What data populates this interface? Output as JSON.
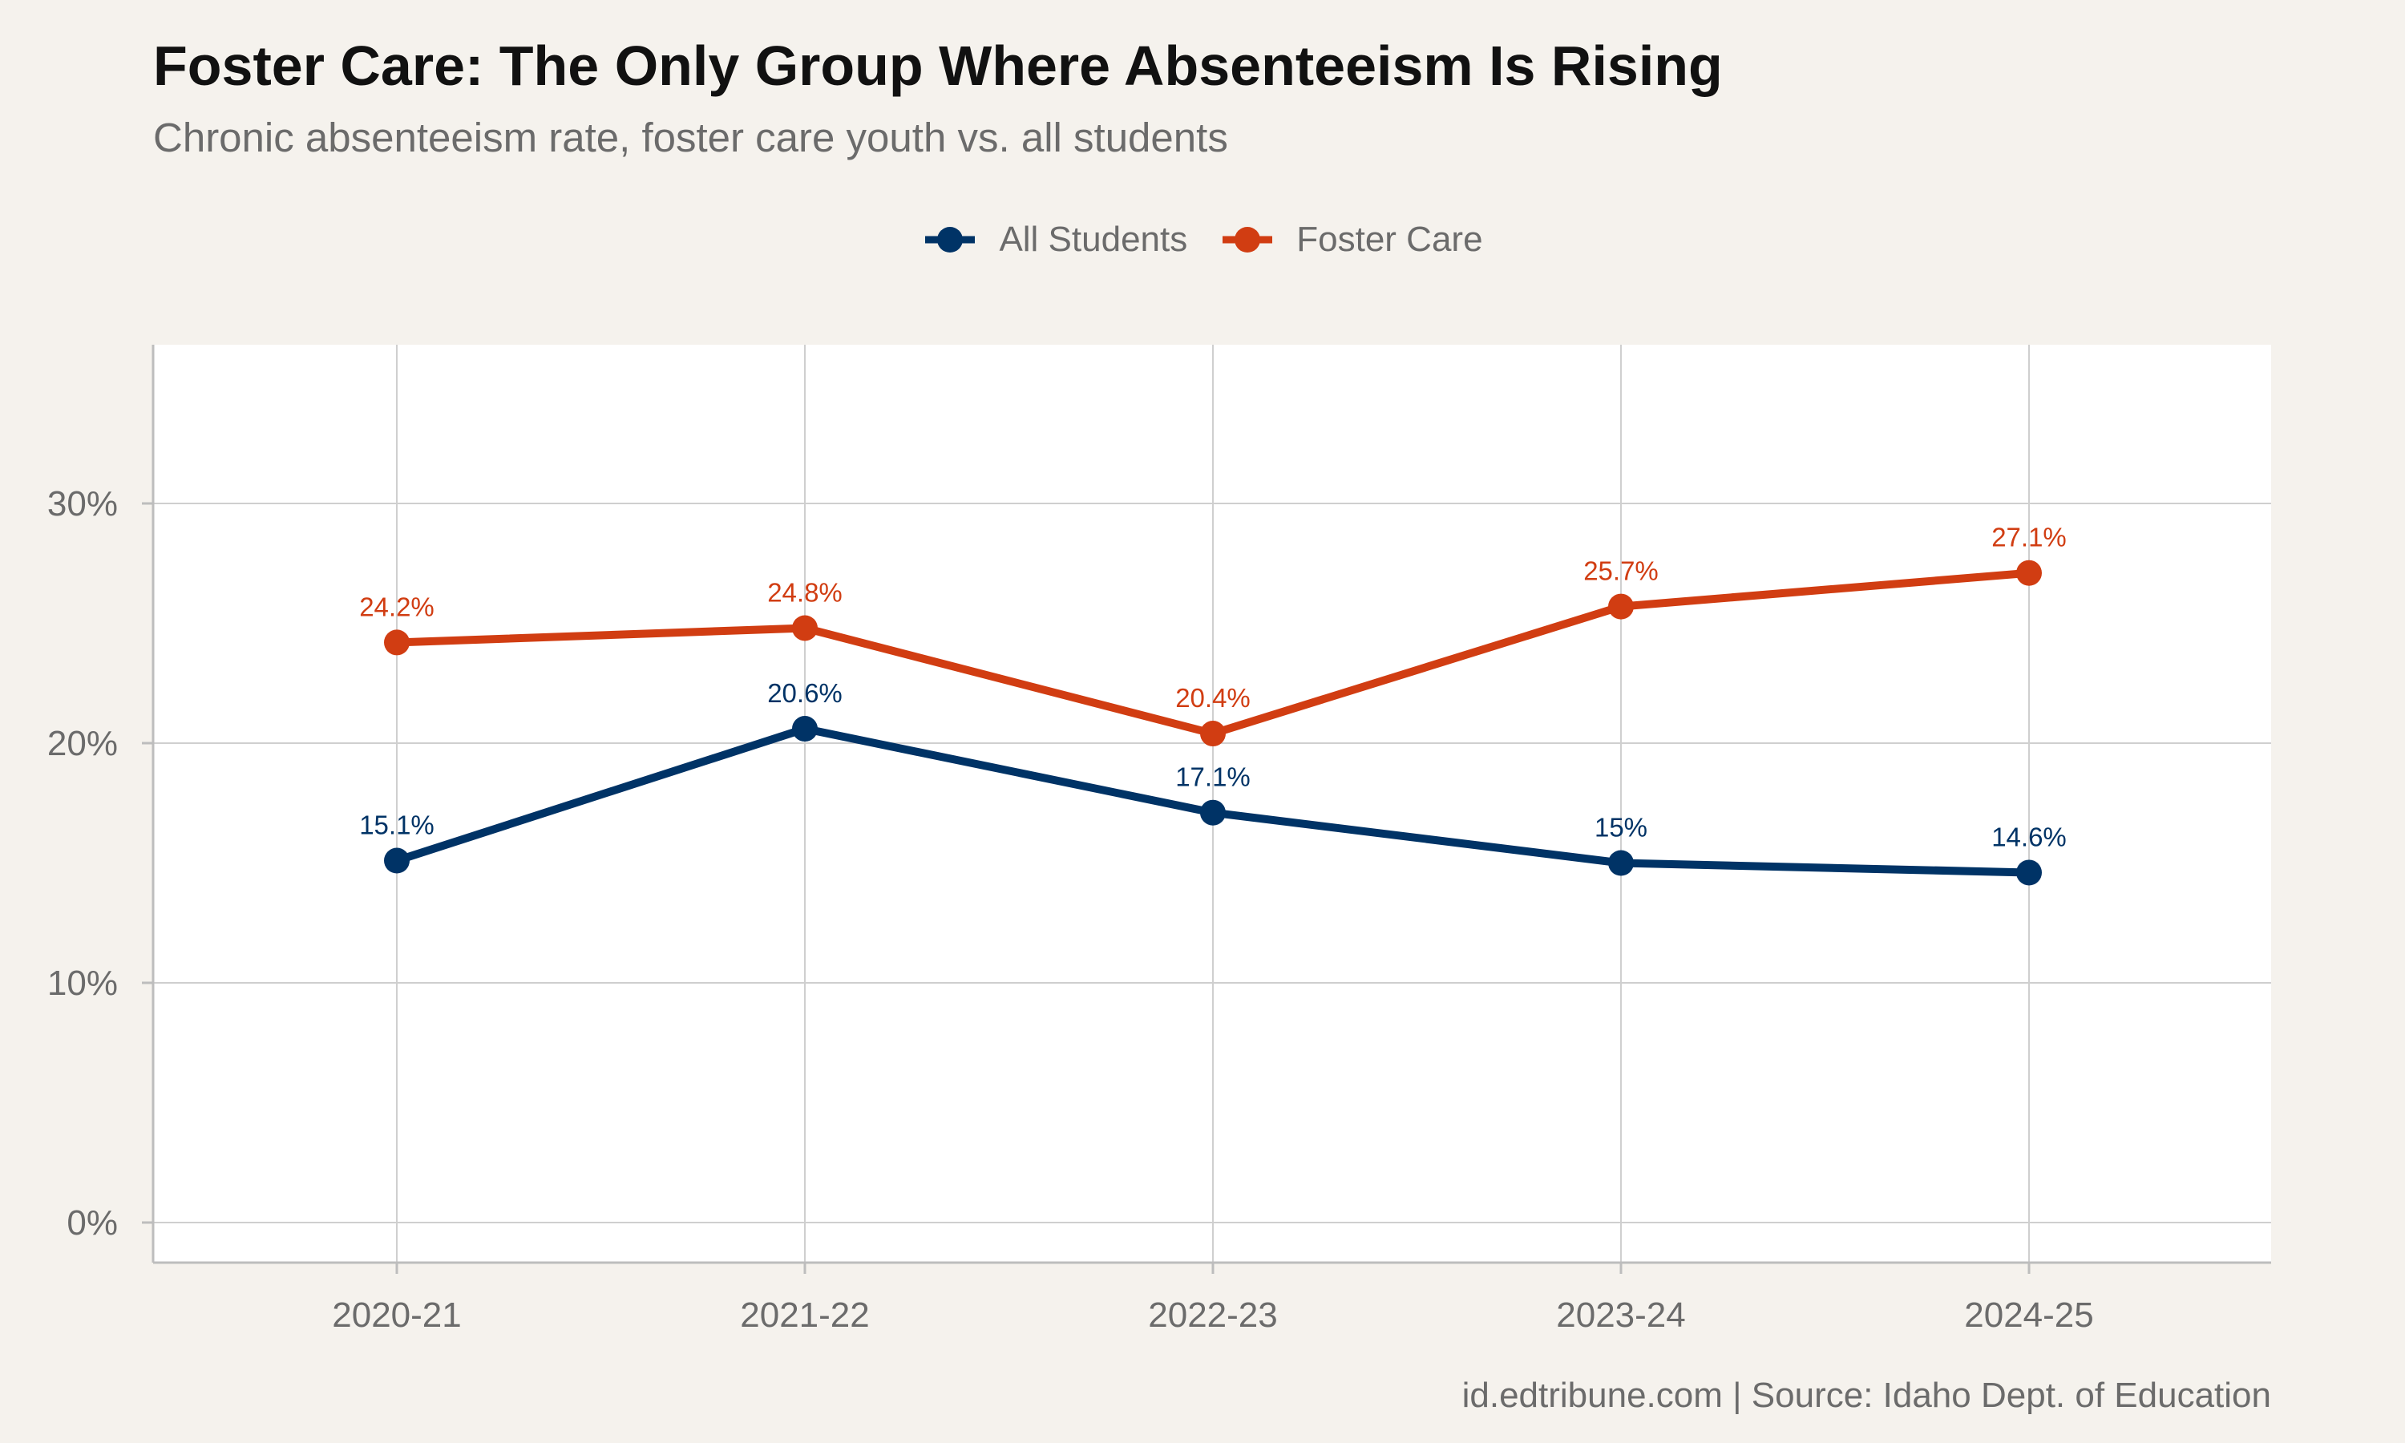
{
  "chart_data": {
    "type": "line",
    "title": "Foster Care: The Only Group Where Absenteeism Is Rising",
    "subtitle": "Chronic absenteeism rate, foster care youth vs. all students",
    "caption": "id.edtribune.com | Source: Idaho Dept. of Education",
    "xlabel": "",
    "ylabel": "",
    "categories": [
      "2020-21",
      "2021-22",
      "2022-23",
      "2023-24",
      "2024-25"
    ],
    "ylim": [
      0,
      36
    ],
    "yticks": [
      0,
      10,
      20,
      30
    ],
    "ytick_labels": [
      "0%",
      "10%",
      "20%",
      "30%"
    ],
    "grid": true,
    "legend_position": "top",
    "series": [
      {
        "name": "All Students",
        "color": "#003366",
        "values": [
          15.1,
          20.6,
          17.1,
          15,
          14.6
        ],
        "labels": [
          "15.1%",
          "20.6%",
          "17.1%",
          "15%",
          "14.6%"
        ]
      },
      {
        "name": "Foster Care",
        "color": "#d13d12",
        "values": [
          24.2,
          24.8,
          20.4,
          25.7,
          27.1
        ],
        "labels": [
          "24.2%",
          "24.8%",
          "20.4%",
          "25.7%",
          "27.1%"
        ]
      }
    ]
  }
}
